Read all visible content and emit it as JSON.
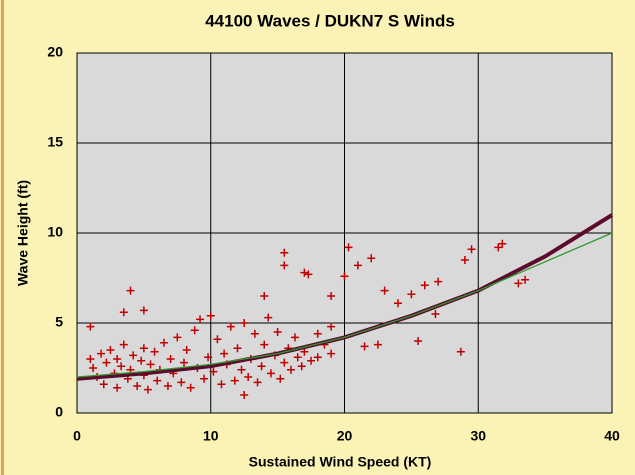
{
  "chart_data": {
    "type": "scatter",
    "title": "44100 Waves / DUKN7  S Winds",
    "xlabel": "Sustained Wind Speed (KT)",
    "ylabel": "Wave Height (ft)",
    "xlim": [
      0,
      40
    ],
    "ylim": [
      0,
      20
    ],
    "xticks": [
      0,
      10,
      20,
      30,
      40
    ],
    "yticks": [
      0,
      5,
      10,
      15,
      20
    ],
    "grid": true,
    "series": [
      {
        "style": "marker",
        "color": "#c00000",
        "x": [
          1,
          4,
          3.5,
          5,
          15.5,
          15.5,
          14,
          17,
          17.3,
          20.3,
          21,
          22,
          20,
          19,
          23,
          24,
          25,
          26,
          27,
          29,
          29.5,
          31.5,
          31.8,
          33.5,
          33,
          28.7,
          25.5,
          22.5,
          21.5,
          26.8,
          12.5,
          18.5,
          19,
          18,
          1,
          1.2,
          1.5,
          1.8,
          2,
          2.2,
          2.5,
          2.8,
          3,
          3,
          3.3,
          3.5,
          3.8,
          4,
          4.2,
          4.5,
          4.8,
          5,
          5,
          5.3,
          5.5,
          5.8,
          6,
          6.2,
          6.5,
          6.8,
          7,
          7.2,
          7.5,
          7.8,
          8,
          8.2,
          8.5,
          8.8,
          9,
          9.2,
          9.5,
          9.8,
          10,
          10.2,
          10.5,
          10.8,
          11,
          11.2,
          11.5,
          11.8,
          12,
          12.3,
          12.5,
          12.8,
          13,
          13.3,
          13.5,
          13.8,
          14,
          14.3,
          14.5,
          14.8,
          15,
          15.2,
          15.5,
          15.8,
          16,
          16.3,
          16.5,
          16.8,
          17,
          17.5,
          18,
          19
        ],
        "values": [
          4.8,
          6.8,
          5.6,
          5.7,
          8.9,
          8.2,
          6.5,
          7.8,
          7.7,
          9.2,
          8.2,
          8.6,
          7.6,
          6.5,
          6.8,
          6.1,
          6.6,
          7.1,
          7.3,
          8.5,
          9.1,
          9.2,
          9.4,
          7.4,
          7.2,
          3.4,
          4.0,
          3.8,
          3.7,
          5.5,
          1.0,
          3.8,
          4.8,
          4.4,
          3.0,
          2.5,
          2.0,
          3.3,
          1.6,
          2.8,
          3.5,
          2.2,
          1.4,
          3.0,
          2.6,
          3.8,
          1.9,
          2.4,
          3.2,
          1.5,
          2.9,
          3.6,
          2.1,
          1.3,
          2.7,
          3.4,
          1.8,
          2.4,
          3.9,
          1.5,
          3.0,
          2.2,
          4.2,
          1.7,
          2.8,
          3.5,
          1.4,
          4.6,
          2.5,
          5.2,
          1.9,
          3.1,
          5.4,
          2.3,
          4.1,
          1.6,
          3.3,
          2.7,
          4.8,
          1.8,
          3.6,
          2.4,
          5.0,
          2.0,
          3.0,
          4.4,
          1.7,
          2.6,
          3.8,
          5.3,
          2.2,
          3.2,
          4.5,
          1.9,
          2.8,
          3.6,
          2.4,
          4.2,
          3.1,
          2.6,
          3.4,
          2.9,
          3.1,
          3.3
        ]
      },
      {
        "style": "line",
        "color": "#5c0a2e",
        "x": [
          0,
          5,
          10,
          15,
          20,
          25,
          30,
          35,
          40
        ],
        "values": [
          1.9,
          2.2,
          2.6,
          3.3,
          4.2,
          5.4,
          6.8,
          8.7,
          11.0
        ]
      },
      {
        "style": "line",
        "color": "#2e9a2e",
        "x": [
          0,
          5,
          10,
          15,
          20,
          25,
          30,
          35,
          40
        ],
        "values": [
          2.0,
          2.3,
          2.7,
          3.3,
          4.2,
          5.4,
          6.8,
          8.4,
          10.0
        ]
      }
    ]
  }
}
